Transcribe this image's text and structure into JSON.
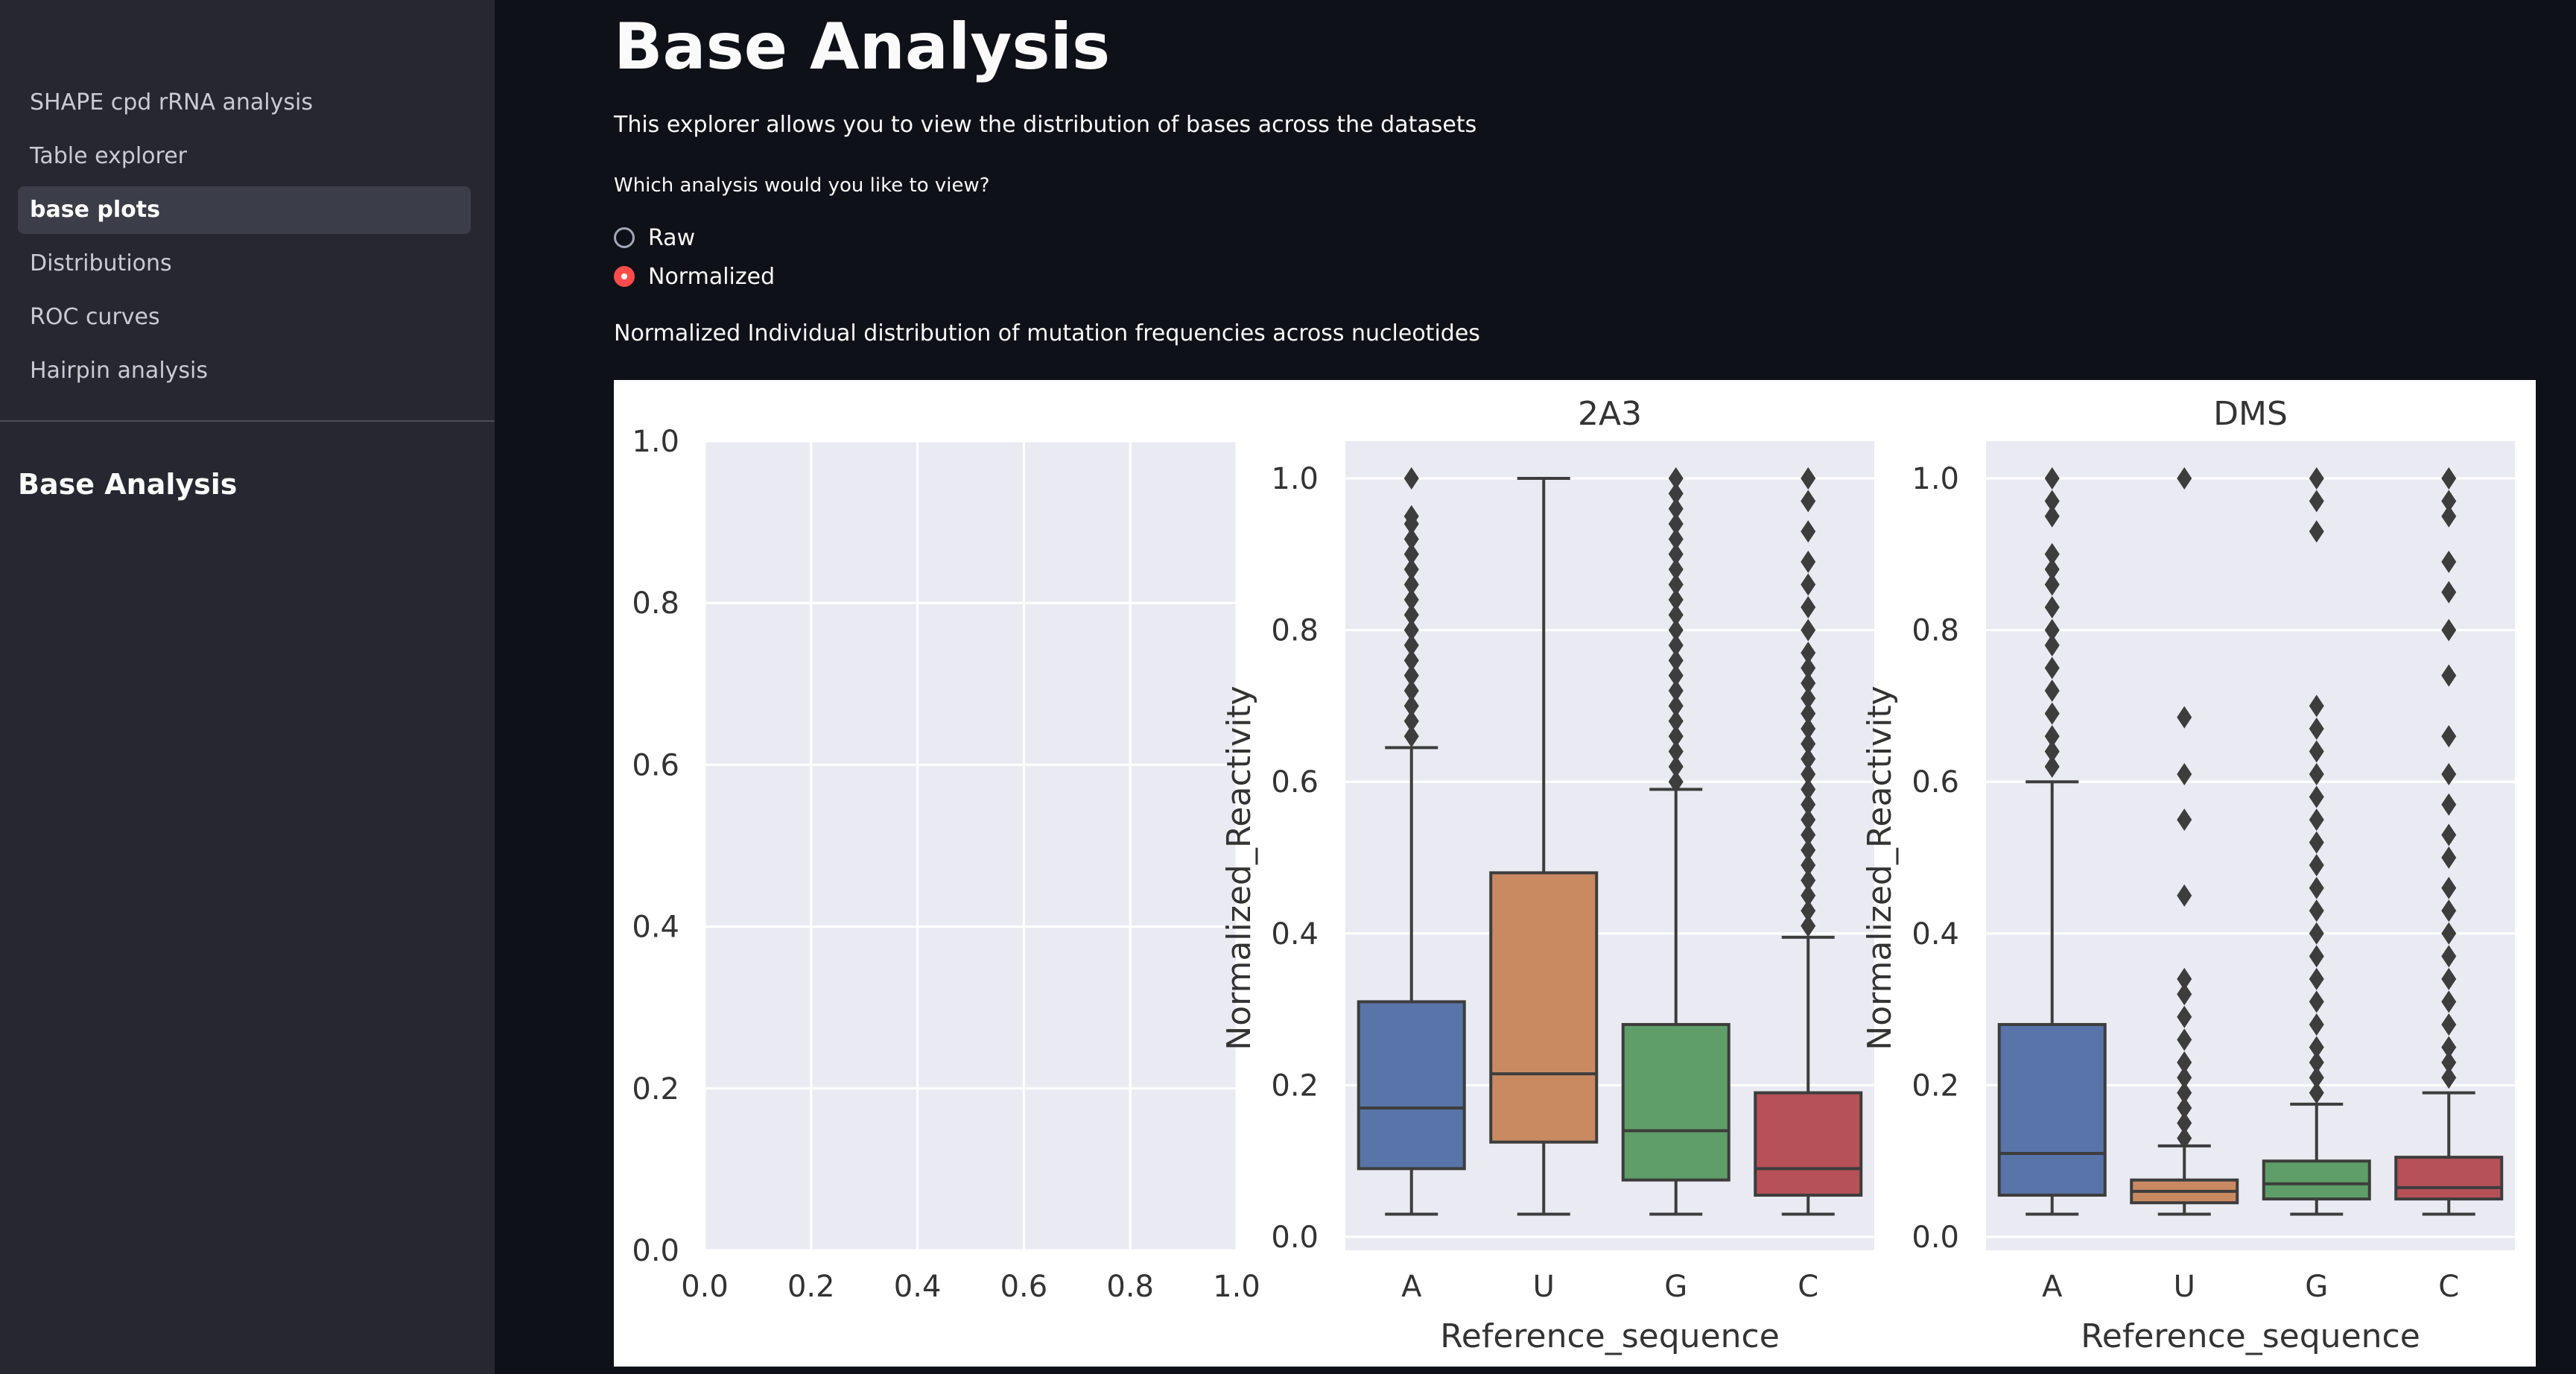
{
  "sidebar": {
    "nav_items": [
      {
        "label": "SHAPE cpd rRNA analysis",
        "active": false
      },
      {
        "label": "Table explorer",
        "active": false
      },
      {
        "label": "base plots",
        "active": true
      },
      {
        "label": "Distributions",
        "active": false
      },
      {
        "label": "ROC curves",
        "active": false
      },
      {
        "label": "Hairpin analysis",
        "active": false
      }
    ],
    "heading": "Base Analysis"
  },
  "main": {
    "title": "Base Analysis",
    "intro": "This explorer allows you to view the distribution of bases across the datasets",
    "question": "Which analysis would you like to view?",
    "options": [
      {
        "label": "Raw",
        "selected": false
      },
      {
        "label": "Normalized",
        "selected": true
      }
    ],
    "caption": "Normalized Individual distribution of mutation frequencies across nucleotides"
  },
  "colors": {
    "accent": "#ff4b4b",
    "A": "#5874a8",
    "U": "#c98a62",
    "G": "#5f9e68",
    "C": "#b55157"
  },
  "chart_data": [
    {
      "type": "empty",
      "x_ticks": [
        "0.0",
        "0.2",
        "0.4",
        "0.6",
        "0.8",
        "1.0"
      ],
      "y_ticks": [
        "0.0",
        "0.2",
        "0.4",
        "0.6",
        "0.8",
        "1.0"
      ],
      "xlim": [
        0,
        1
      ],
      "ylim": [
        0,
        1
      ]
    },
    {
      "type": "box",
      "title": "2A3",
      "xlabel": "Reference_sequence",
      "ylabel": "Normalized_Reactivity",
      "categories": [
        "A",
        "U",
        "G",
        "C"
      ],
      "y_ticks": [
        "0.0",
        "0.2",
        "0.4",
        "0.6",
        "0.8",
        "1.0"
      ],
      "ylim": [
        0,
        1
      ],
      "boxes": [
        {
          "min": 0.03,
          "q1": 0.09,
          "median": 0.17,
          "q3": 0.31,
          "max": 0.645,
          "outliers": [
            0.66,
            0.68,
            0.7,
            0.72,
            0.74,
            0.76,
            0.78,
            0.8,
            0.82,
            0.84,
            0.86,
            0.88,
            0.9,
            0.92,
            0.94,
            0.95,
            1.0
          ]
        },
        {
          "min": 0.03,
          "q1": 0.125,
          "median": 0.215,
          "q3": 0.48,
          "max": 1.0,
          "outliers": []
        },
        {
          "min": 0.03,
          "q1": 0.075,
          "median": 0.14,
          "q3": 0.28,
          "max": 0.59,
          "outliers": [
            0.6,
            0.62,
            0.64,
            0.66,
            0.68,
            0.7,
            0.72,
            0.74,
            0.76,
            0.78,
            0.8,
            0.82,
            0.84,
            0.86,
            0.88,
            0.9,
            0.92,
            0.94,
            0.96,
            0.98,
            1.0
          ]
        },
        {
          "min": 0.03,
          "q1": 0.055,
          "median": 0.09,
          "q3": 0.19,
          "max": 0.395,
          "outliers": [
            0.41,
            0.43,
            0.45,
            0.47,
            0.49,
            0.51,
            0.53,
            0.55,
            0.57,
            0.59,
            0.61,
            0.63,
            0.65,
            0.67,
            0.69,
            0.71,
            0.73,
            0.75,
            0.77,
            0.8,
            0.83,
            0.86,
            0.89,
            0.93,
            0.97,
            1.0
          ]
        }
      ]
    },
    {
      "type": "box",
      "title": "DMS",
      "xlabel": "Reference_sequence",
      "ylabel": "Normalized_Reactivity",
      "categories": [
        "A",
        "U",
        "G",
        "C"
      ],
      "y_ticks": [
        "0.0",
        "0.2",
        "0.4",
        "0.6",
        "0.8",
        "1.0"
      ],
      "ylim": [
        0,
        1
      ],
      "boxes": [
        {
          "min": 0.03,
          "q1": 0.055,
          "median": 0.11,
          "q3": 0.28,
          "max": 0.6,
          "outliers": [
            0.62,
            0.64,
            0.66,
            0.69,
            0.72,
            0.75,
            0.78,
            0.8,
            0.83,
            0.86,
            0.88,
            0.9,
            0.95,
            0.97,
            1.0
          ]
        },
        {
          "min": 0.03,
          "q1": 0.045,
          "median": 0.06,
          "q3": 0.075,
          "max": 0.12,
          "outliers": [
            0.13,
            0.15,
            0.17,
            0.19,
            0.21,
            0.23,
            0.26,
            0.29,
            0.32,
            0.34,
            0.45,
            0.55,
            0.61,
            0.685,
            1.0
          ]
        },
        {
          "min": 0.03,
          "q1": 0.05,
          "median": 0.07,
          "q3": 0.1,
          "max": 0.175,
          "outliers": [
            0.19,
            0.21,
            0.23,
            0.25,
            0.28,
            0.31,
            0.34,
            0.37,
            0.4,
            0.43,
            0.46,
            0.49,
            0.52,
            0.55,
            0.58,
            0.61,
            0.64,
            0.67,
            0.7,
            0.93,
            0.97,
            1.0
          ]
        },
        {
          "min": 0.03,
          "q1": 0.05,
          "median": 0.065,
          "q3": 0.105,
          "max": 0.19,
          "outliers": [
            0.21,
            0.23,
            0.25,
            0.28,
            0.31,
            0.34,
            0.37,
            0.4,
            0.43,
            0.46,
            0.5,
            0.53,
            0.57,
            0.61,
            0.66,
            0.74,
            0.8,
            0.85,
            0.89,
            0.95,
            0.97,
            1.0
          ]
        }
      ]
    }
  ]
}
